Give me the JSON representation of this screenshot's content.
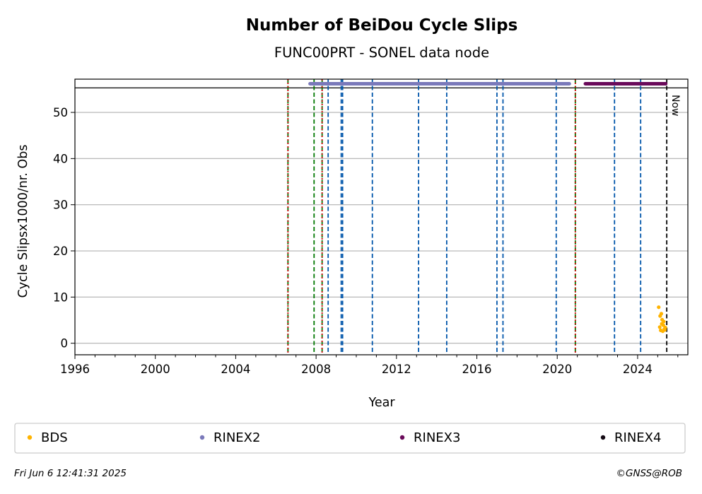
{
  "chart_data": {
    "type": "scatter",
    "title": "Number of BeiDou Cycle Slips",
    "subtitle": "FUNC00PRT - SONEL data node",
    "xlabel": "Year",
    "ylabel": "Cycle Slipsx1000/nr. Obs",
    "xlim": [
      1996,
      2026.5
    ],
    "ylim": [
      -2.5,
      57.2
    ],
    "x_ticks": [
      1996,
      2000,
      2004,
      2008,
      2012,
      2016,
      2020,
      2024
    ],
    "x_tick_labels": [
      "1996",
      "2000",
      "2004",
      "2008",
      "2012",
      "2016",
      "2020",
      "2024"
    ],
    "y_ticks": [
      0,
      10,
      20,
      30,
      40,
      50
    ],
    "y_tick_labels": [
      "0",
      "10",
      "20",
      "30",
      "40",
      "50"
    ],
    "grid": "y",
    "hline_y": 55.3,
    "series": [
      {
        "name": "BDS",
        "color": "#FFB300",
        "x": [
          2025.05,
          2025.1,
          2025.12,
          2025.15,
          2025.18,
          2025.2,
          2025.22,
          2025.25,
          2025.28,
          2025.3,
          2025.33,
          2025.36,
          2025.38
        ],
        "y": [
          7.8,
          3.5,
          5.9,
          2.8,
          6.4,
          4.2,
          5.1,
          2.6,
          3.9,
          4.7,
          3.1,
          2.9,
          3.4
        ]
      },
      {
        "name": "RINEX2",
        "color": "#7A79BA",
        "segment": [
          2007.7,
          2020.6
        ],
        "y": 56.2
      },
      {
        "name": "RINEX3",
        "color": "#6A0A5A",
        "segment": [
          2021.4,
          2025.4
        ],
        "y": 56.2
      },
      {
        "name": "RINEX4",
        "color": "#140A14"
      }
    ],
    "event_lines": [
      {
        "x": 2006.6,
        "color": "#007700",
        "style": "dashed"
      },
      {
        "x": 2006.6,
        "color": "#CC0000",
        "style": "dotted"
      },
      {
        "x": 2007.9,
        "color": "#007700",
        "style": "dashed"
      },
      {
        "x": 2008.3,
        "color": "#007700",
        "style": "dashed"
      },
      {
        "x": 2008.3,
        "color": "#CC0000",
        "style": "dotted"
      },
      {
        "x": 2008.6,
        "color": "#0055AA",
        "style": "dashed"
      },
      {
        "x": 2009.25,
        "color": "#0055AA",
        "style": "dashed"
      },
      {
        "x": 2009.32,
        "color": "#0055AA",
        "style": "dashed"
      },
      {
        "x": 2010.8,
        "color": "#0055AA",
        "style": "dashed"
      },
      {
        "x": 2013.1,
        "color": "#0055AA",
        "style": "dashed"
      },
      {
        "x": 2014.5,
        "color": "#0055AA",
        "style": "dashed"
      },
      {
        "x": 2017.0,
        "color": "#0055AA",
        "style": "dashed"
      },
      {
        "x": 2017.3,
        "color": "#0055AA",
        "style": "dashed"
      },
      {
        "x": 2019.95,
        "color": "#0055AA",
        "style": "dashed"
      },
      {
        "x": 2020.9,
        "color": "#007700",
        "style": "dashed"
      },
      {
        "x": 2020.9,
        "color": "#CC0000",
        "style": "dotted"
      },
      {
        "x": 2022.85,
        "color": "#0055AA",
        "style": "dashed"
      },
      {
        "x": 2024.15,
        "color": "#0055AA",
        "style": "dashed"
      }
    ],
    "now": {
      "x": 2025.45,
      "label": "Now",
      "color": "#000000"
    },
    "legend": {
      "placement": "below"
    }
  },
  "footer": {
    "timestamp": "Fri Jun  6 12:41:31 2025",
    "credit": "©GNSS@ROB"
  }
}
